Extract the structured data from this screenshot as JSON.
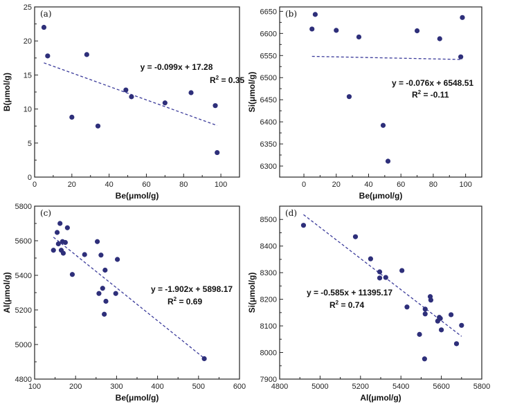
{
  "chart_data": [
    {
      "type": "scatter",
      "panel_label": "(a)",
      "xlabel": "Be(μmol/g)",
      "ylabel": "B(μmol/g)",
      "xlim": [
        0,
        110
      ],
      "ylim": [
        0,
        25
      ],
      "xticks": [
        0,
        20,
        40,
        60,
        80,
        100
      ],
      "yticks": [
        0,
        5,
        10,
        15,
        20,
        25
      ],
      "points": [
        [
          5,
          22
        ],
        [
          7,
          17.8
        ],
        [
          20,
          8.8
        ],
        [
          28,
          18
        ],
        [
          34,
          7.5
        ],
        [
          49,
          12.8
        ],
        [
          52,
          11.8
        ],
        [
          70,
          10.9
        ],
        [
          84,
          12.4
        ],
        [
          97,
          10.5
        ],
        [
          98,
          3.6
        ]
      ],
      "fit": {
        "slope": -0.099,
        "intercept": 17.28,
        "x_range": [
          5,
          98
        ]
      },
      "equation": "y = -0.099x + 17.28",
      "r2_prefix": "R",
      "r2_sup": "2",
      "r2_value": " = 0.35"
    },
    {
      "type": "scatter",
      "panel_label": "(b)",
      "xlabel": "Be(μmol/g)",
      "ylabel": "Si(μmol/g)",
      "xlim": [
        -15,
        110
      ],
      "ylim": [
        6275,
        6660
      ],
      "xticks": [
        0,
        20,
        40,
        60,
        80,
        100
      ],
      "yticks": [
        6300,
        6350,
        6400,
        6450,
        6500,
        6550,
        6600,
        6650
      ],
      "points": [
        [
          5,
          6610
        ],
        [
          7,
          6643
        ],
        [
          20,
          6607
        ],
        [
          28,
          6457
        ],
        [
          34,
          6592
        ],
        [
          49,
          6392
        ],
        [
          52,
          6311
        ],
        [
          70,
          6606
        ],
        [
          84,
          6588
        ],
        [
          97,
          6547
        ],
        [
          98,
          6636
        ]
      ],
      "fit": {
        "slope": -0.076,
        "intercept": 6548.51,
        "x_range": [
          5,
          98
        ]
      },
      "equation": "y = -0.076x + 6548.51",
      "r2_prefix": "R",
      "r2_sup": "2",
      "r2_value": " = -0.11"
    },
    {
      "type": "scatter",
      "panel_label": "(c)",
      "xlabel": "Be(μmol/g)",
      "ylabel": "Al(μmol/g)",
      "xlim": [
        100,
        600
      ],
      "ylim": [
        4800,
        5800
      ],
      "xticks": [
        100,
        200,
        300,
        400,
        500,
        600
      ],
      "yticks": [
        4800,
        5000,
        5200,
        5400,
        5600,
        5800
      ],
      "points": [
        [
          146,
          5545
        ],
        [
          155,
          5648
        ],
        [
          158,
          5582
        ],
        [
          162,
          5700
        ],
        [
          165,
          5545
        ],
        [
          168,
          5595
        ],
        [
          170,
          5528
        ],
        [
          175,
          5590
        ],
        [
          180,
          5675
        ],
        [
          192,
          5405
        ],
        [
          222,
          5520
        ],
        [
          253,
          5595
        ],
        [
          257,
          5295
        ],
        [
          262,
          5517
        ],
        [
          266,
          5325
        ],
        [
          270,
          5175
        ],
        [
          272,
          5430
        ],
        [
          274,
          5250
        ],
        [
          298,
          5295
        ],
        [
          302,
          5492
        ],
        [
          514,
          4918
        ]
      ],
      "fit": {
        "slope": -1.902,
        "intercept": 5898.17,
        "x_range": [
          146,
          514
        ]
      },
      "equation": "y = -1.902x + 5898.17",
      "r2_prefix": "R",
      "r2_sup": "2",
      "r2_value": " = 0.69"
    },
    {
      "type": "scatter",
      "panel_label": "(d)",
      "xlabel": "Al(μmol/g)",
      "ylabel": "Si(μmol/g)",
      "xlim": [
        4800,
        5800
      ],
      "ylim": [
        7900,
        8550
      ],
      "xticks": [
        4800,
        5000,
        5200,
        5400,
        5600,
        5800
      ],
      "yticks": [
        7900,
        8000,
        8100,
        8200,
        8300,
        8400,
        8500
      ],
      "points": [
        [
          4918,
          8478
        ],
        [
          5175,
          8435
        ],
        [
          5250,
          8352
        ],
        [
          5295,
          8303
        ],
        [
          5295,
          8280
        ],
        [
          5325,
          8282
        ],
        [
          5405,
          8308
        ],
        [
          5430,
          8171
        ],
        [
          5492,
          8068
        ],
        [
          5517,
          7976
        ],
        [
          5520,
          8145
        ],
        [
          5520,
          8163
        ],
        [
          5545,
          8210
        ],
        [
          5548,
          8197
        ],
        [
          5582,
          8118
        ],
        [
          5590,
          8132
        ],
        [
          5595,
          8128
        ],
        [
          5600,
          8085
        ],
        [
          5648,
          8142
        ],
        [
          5675,
          8033
        ],
        [
          5700,
          8102
        ]
      ],
      "fit": {
        "slope": -0.585,
        "intercept": 11395.17,
        "x_range": [
          4918,
          5700
        ]
      },
      "equation": "y = -0.585x + 11395.17",
      "r2_prefix": "R",
      "r2_sup": "2",
      "r2_value": " = 0.74"
    }
  ],
  "colors": {
    "marker": "#2e2f7a",
    "fit_line": "#3a3a9a",
    "axis": "#222222"
  }
}
